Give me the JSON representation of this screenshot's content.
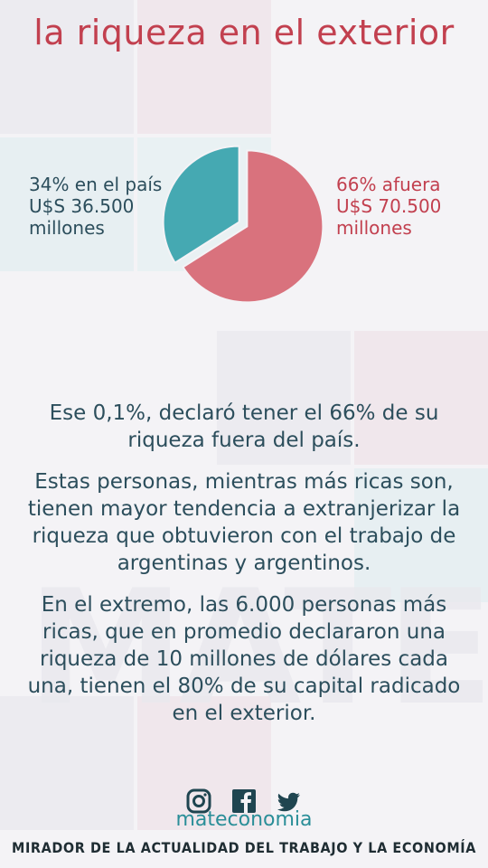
{
  "title": "la riqueza en el exterior",
  "chart_data": {
    "type": "pie",
    "slices": [
      {
        "name": "en el país",
        "value": 34,
        "color": "#45a9b2"
      },
      {
        "name": "afuera",
        "value": 66,
        "color": "#d9727d"
      }
    ]
  },
  "pie_labels": {
    "left": {
      "line1": "34% en el país",
      "line2": "U$S 36.500",
      "line3": "millones"
    },
    "right": {
      "line1": "66% afuera",
      "line2": "U$S 70.500",
      "line3": "millones"
    }
  },
  "paragraphs": [
    "Ese 0,1%, declaró tener el 66% de su riqueza fuera del país.",
    "Estas personas, mientras más ricas son, tienen mayor tendencia a extranjerizar la riqueza que obtuvieron con el trabajo de argentinas y argentinos.",
    "En el extremo, las 6.000 personas más ricas, que en promedio declararon una riqueza de 10 millones de dólares cada una, tienen el 80% de su capital radicado en el exterior."
  ],
  "watermark": "MATE",
  "social": {
    "icons": [
      "instagram-icon",
      "facebook-icon",
      "twitter-icon"
    ],
    "handle": "mateconomia"
  },
  "footer": "MIRADOR DE LA ACTUALIDAD DEL TRABAJO Y LA ECONOMÍA",
  "colors": {
    "accent_red": "#c2404f",
    "teal": "#45a9b2",
    "text_dark": "#2c4e5c"
  }
}
